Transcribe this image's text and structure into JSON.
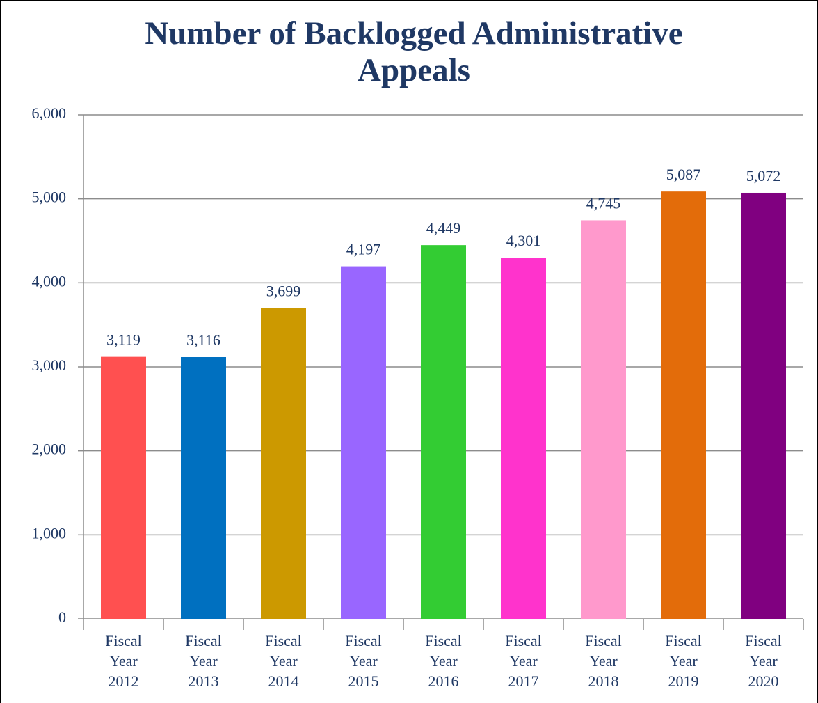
{
  "chart_data": {
    "type": "bar",
    "title": "Number of Backlogged Administrative Appeals",
    "categories": [
      "Fiscal Year 2012",
      "Fiscal Year 2013",
      "Fiscal Year 2014",
      "Fiscal Year 2015",
      "Fiscal Year 2016",
      "Fiscal Year 2017",
      "Fiscal Year 2018",
      "Fiscal Year 2019",
      "Fiscal Year 2020"
    ],
    "values": [
      3119,
      3116,
      3699,
      4197,
      4449,
      4301,
      4745,
      5087,
      5072
    ],
    "value_labels": [
      "3,119",
      "3,116",
      "3,699",
      "4,197",
      "4,449",
      "4,301",
      "4,745",
      "5,087",
      "5,072"
    ],
    "colors": [
      "#ff5050",
      "#0070c0",
      "#cc9900",
      "#9966ff",
      "#33cc33",
      "#ff33cc",
      "#ff99cc",
      "#e36c0a",
      "#800080"
    ],
    "ylim": [
      0,
      6000
    ],
    "yticks": [
      0,
      {
        "value": 1000,
        "label": "1,000"
      },
      {
        "value": 2000,
        "label": "2,000"
      },
      {
        "value": 3000,
        "label": "3,000"
      },
      {
        "value": 4000,
        "label": "4,000"
      },
      {
        "value": 5000,
        "label": "5,000"
      },
      {
        "value": 6000,
        "label": "6,000"
      }
    ],
    "grid": true
  }
}
